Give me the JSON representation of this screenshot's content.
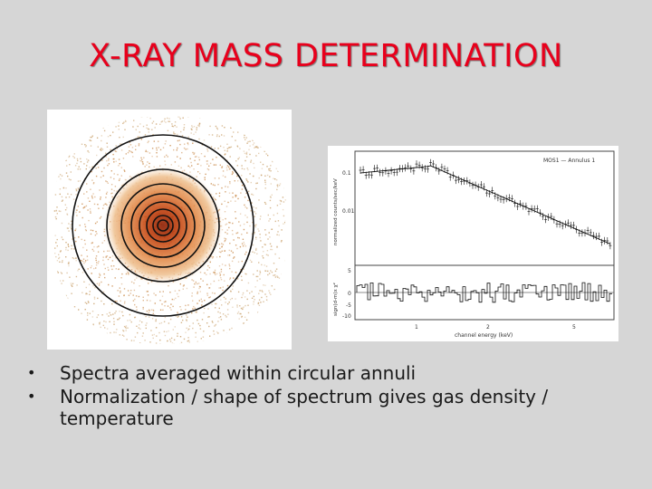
{
  "slide": {
    "title": "X-RAY MASS DETERMINATION",
    "title_color": "#e8001c",
    "background": "#d6d6d6"
  },
  "spectrum": {
    "panel_label": "MOS1 — Annulus 1",
    "top_ylabel": "normalized counts/sec/keV",
    "bottom_ylabel": "sign(d-m)x χ²",
    "xlabel": "channel energy (keV)",
    "top_ticks": [
      "0.1",
      "0.01"
    ],
    "bottom_ticks": [
      "5",
      "0",
      "-5",
      "-10"
    ],
    "x_ticks": [
      "1",
      "2",
      "5"
    ]
  },
  "bullets": [
    "Spectra averaged within circular annuli",
    "Normalization / shape of spectrum gives gas density / temperature"
  ]
}
